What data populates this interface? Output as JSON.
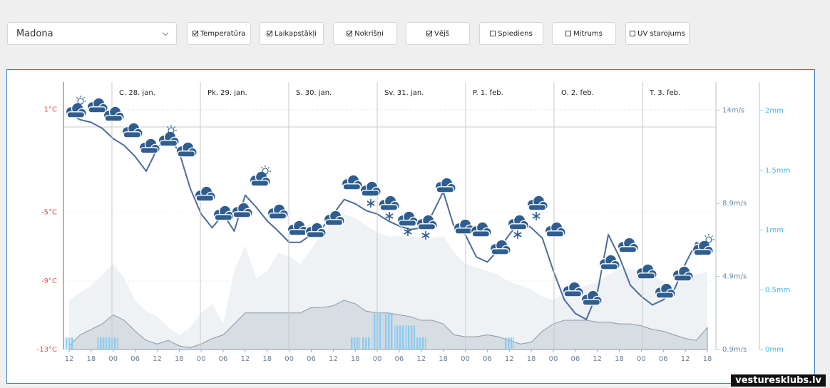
{
  "location_select": "Madona",
  "toggles": [
    {
      "label": "Temperatūra",
      "checked": true
    },
    {
      "label": "Laikapstākļi",
      "checked": true
    },
    {
      "label": "Nokrišņi",
      "checked": true
    },
    {
      "label": "Vējš",
      "checked": true
    },
    {
      "label": "Spiediens",
      "checked": false
    },
    {
      "label": "Mitrums",
      "checked": false
    },
    {
      "label": "UV starojums",
      "checked": false
    }
  ],
  "watermark": "vesturesklubs.lv",
  "chart_data": {
    "type": "line",
    "days": [
      "C. 28. jan.",
      "Pk. 29. jan.",
      "S. 30. jan.",
      "Sv. 31. jan.",
      "P. 1. feb.",
      "O. 2. feb.",
      "T. 3. feb."
    ],
    "categories": [
      "12",
      null,
      "18",
      null,
      "00",
      null,
      "06",
      null,
      "12",
      null,
      "18",
      null,
      "00",
      null,
      "06",
      null,
      "12",
      null,
      "18",
      null,
      "00",
      null,
      "06",
      null,
      "12",
      null,
      "18",
      null,
      "00",
      null,
      "06",
      null,
      "12",
      null,
      "18",
      null,
      "00",
      null,
      "06",
      null,
      "12",
      null,
      "18",
      null,
      "00",
      null,
      "06",
      null,
      "12",
      null,
      "18",
      null,
      "00",
      null,
      "06",
      null,
      "12",
      null,
      "18"
    ],
    "ylim": [
      -13,
      2.6
    ],
    "yticks": [
      {
        "value": 1,
        "label": "1°C"
      },
      {
        "value": -5,
        "label": "-5°C"
      },
      {
        "value": -9,
        "label": "-9°C"
      },
      {
        "value": -13,
        "label": "-13°C"
      }
    ],
    "y2lim": [
      0.9,
      15.55
    ],
    "y2ticks": [
      {
        "value": 14,
        "label": "14m/s"
      },
      {
        "value": 8.9,
        "label": "8.9m/s"
      },
      {
        "value": 4.9,
        "label": "4.9m/s"
      },
      {
        "value": 0.9,
        "label": "0.9m/s"
      }
    ],
    "y3lim": [
      0,
      2.24
    ],
    "y3ticks": [
      {
        "value": 2,
        "label": "2mm"
      },
      {
        "value": 1.5,
        "label": "1.5mm"
      },
      {
        "value": 1,
        "label": "1mm"
      },
      {
        "value": 0.5,
        "label": "0.5mm"
      },
      {
        "value": 0,
        "label": "0mm"
      }
    ],
    "series": [
      {
        "style": "area",
        "axis": "y2",
        "color": "#eef2f4",
        "values": [
          3.6,
          4.0,
          4.4,
          5.0,
          5.6,
          4.8,
          3.6,
          3.0,
          2.7,
          2.1,
          1.7,
          2.1,
          2.9,
          3.4,
          2.3,
          5.2,
          6.6,
          4.8,
          5.2,
          6.2,
          6.0,
          5.6,
          6.4,
          7.3,
          7.9,
          8.3,
          8.1,
          7.7,
          7.3,
          7.1,
          7.1,
          7.1,
          7.0,
          7.0,
          7.1,
          6.2,
          5.6,
          5.4,
          5.2,
          5.0,
          4.6,
          4.4,
          4.2,
          3.8,
          3.6,
          4.0,
          4.2,
          4.4,
          4.6,
          5.0,
          5.3,
          5.3,
          5.2,
          5.0,
          4.6,
          4.4,
          4.7,
          5.0,
          5.2
        ]
      },
      {
        "style": "area",
        "axis": "y2",
        "color": "#d6dde3",
        "values": [
          1.1,
          1.7,
          2.0,
          2.3,
          2.8,
          2.5,
          1.9,
          1.4,
          1.2,
          1.4,
          1.1,
          1.0,
          1.2,
          1.5,
          1.7,
          2.3,
          2.9,
          2.9,
          2.9,
          2.9,
          2.9,
          2.9,
          3.2,
          3.2,
          3.3,
          3.6,
          3.4,
          3.0,
          2.9,
          2.9,
          2.8,
          2.7,
          2.5,
          2.5,
          2.3,
          1.7,
          1.6,
          1.6,
          1.7,
          1.6,
          1.4,
          1.2,
          1.3,
          1.9,
          2.3,
          2.5,
          2.5,
          2.5,
          2.4,
          2.4,
          2.3,
          2.3,
          2.2,
          2.0,
          1.9,
          1.7,
          1.5,
          1.4,
          2.1
        ]
      },
      {
        "style": "bar",
        "axis": "y3",
        "color": "#8ccbf0",
        "values": [
          0.1,
          0,
          0,
          0.1,
          0.1,
          0,
          0,
          0,
          0,
          0,
          0,
          0,
          0,
          0,
          0,
          0,
          0,
          0,
          0,
          0,
          0,
          0,
          0,
          0,
          0,
          0,
          0.1,
          0.1,
          0.3,
          0.3,
          0.2,
          0.2,
          0.1,
          0,
          0,
          0,
          0,
          0,
          0,
          0,
          0.1,
          0,
          0,
          0,
          0,
          0,
          0,
          0,
          0,
          0,
          0,
          0,
          0,
          0,
          0,
          0,
          0,
          0,
          0
        ]
      },
      {
        "style": "line",
        "axis": "y",
        "color": "#4a6d9c",
        "values": [
          0.75,
          0.4,
          0.25,
          -0.1,
          -0.7,
          -1.1,
          -1.75,
          -2.6,
          -1.3,
          -0.5,
          -1.5,
          -3.6,
          -5.1,
          -5.9,
          -5.1,
          -6.1,
          -4.0,
          -4.7,
          -5.5,
          -6.1,
          -6.75,
          -6.75,
          -6.3,
          -5.9,
          -5.1,
          -4.25,
          -4.5,
          -4.9,
          -5.1,
          -5.5,
          -5.8,
          -6.0,
          -5.9,
          -5.1,
          -3.8,
          -5.9,
          -6.3,
          -7.6,
          -7.9,
          -7.2,
          -6.3,
          -5.5,
          -5.9,
          -6.5,
          -8.4,
          -10.1,
          -10.9,
          -11.25,
          -9.7,
          -6.3,
          -7.6,
          -9.25,
          -9.9,
          -10.4,
          -10.1,
          -9.5,
          -8.0,
          -6.75,
          -7.2
        ]
      }
    ]
  }
}
